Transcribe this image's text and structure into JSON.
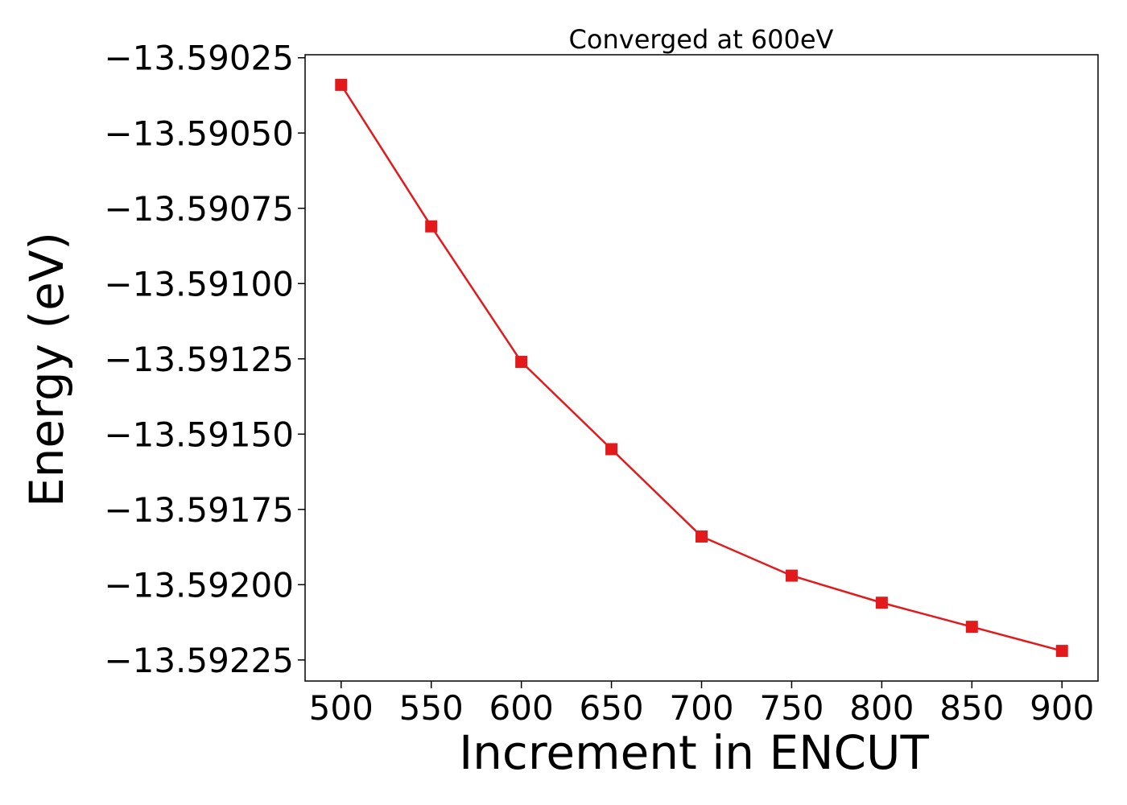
{
  "chart_data": {
    "type": "line",
    "title": "Converged at 600eV",
    "xlabel": "Increment in ENCUT",
    "ylabel": "Energy (eV)",
    "x": [
      500,
      550,
      600,
      650,
      700,
      750,
      800,
      850,
      900
    ],
    "series": [
      {
        "values": [
          -13.59034,
          -13.59081,
          -13.59126,
          -13.59155,
          -13.59184,
          -13.59197,
          -13.59206,
          -13.59214,
          -13.59222
        ],
        "color": "#e31a1c",
        "marker": "square"
      }
    ],
    "xticks": [
      500,
      550,
      600,
      650,
      700,
      750,
      800,
      850,
      900
    ],
    "xtick_labels": [
      "500",
      "550",
      "600",
      "650",
      "700",
      "750",
      "800",
      "850",
      "900"
    ],
    "yticks": [
      -13.59025,
      -13.5905,
      -13.59075,
      -13.591,
      -13.59125,
      -13.5915,
      -13.59175,
      -13.592,
      -13.59225
    ],
    "ytick_labels": [
      "−13.59025",
      "−13.59050",
      "−13.59075",
      "−13.59100",
      "−13.59125",
      "−13.59150",
      "−13.59175",
      "−13.59200",
      "−13.59225"
    ],
    "xlim": [
      480,
      920
    ],
    "ylim": [
      -13.59232,
      -13.59024
    ],
    "grid": false,
    "legend": "none"
  }
}
